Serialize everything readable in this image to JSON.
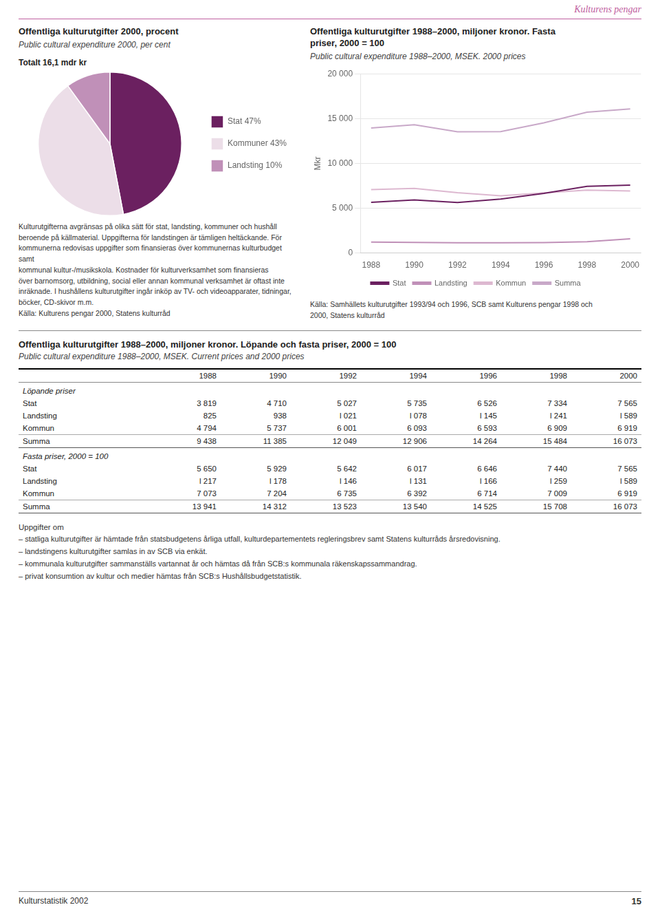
{
  "header": "Kulturens pengar",
  "chart_data": [
    {
      "type": "pie",
      "title": "Offentliga kulturutgifter 2000, procent",
      "subtitle": "Public cultural expenditure 2000, per cent",
      "annotations": [
        "Totalt 16,1 mdr kr",
        "Kulturutgifterna avgränsas på olika sätt för stat, landsting, kommuner och hushåll\nberoende på källmaterial. Uppgifterna för landstingen är tämligen heltäckande. För\nkommunerna redovisas uppgifter som finansieras över kommunernas kulturbudget samt\nkommunal kultur-/musikskola. Kostnader för kulturverksamhet som finansieras\növer barnomsorg, utbildning, social eller annan kommunal verksamhet är oftast inte\ninräknade. I hushållens kulturutgifter ingår inköp av TV- och videoapparater, tidningar,\nböcker, CD-skivor m.m.\nKälla: Kulturens pengar 2000, Statens kulturråd"
      ],
      "categories": [
        "Stat 47%",
        "Kommuner 43%",
        "Landsting 10%"
      ],
      "values": [
        47,
        43,
        10
      ],
      "colors": [
        "#6b2060",
        "#ecdee8",
        "#c090b8"
      ],
      "legend": "right"
    },
    {
      "type": "line",
      "title": "Offentliga kulturutgifter 1988–2000, miljoner kronor. Fasta\npriser, 2000 = 100",
      "subtitle": "Public cultural expenditure 1988–2000, MSEK. 2000 prices",
      "ylabel": "Mkr",
      "annotations": [
        "Källa: Samhällets kulturutgifter 1993/94 och 1996, SCB samt Kulturens pengar 1998 och\n2000, Statens kulturråd"
      ],
      "x": [
        1988,
        1990,
        1992,
        1994,
        1996,
        1998,
        2000
      ],
      "xlim": [
        1987.5,
        2000.5
      ],
      "xticks": [
        1988,
        1990,
        1992,
        1994,
        1996,
        1998,
        2000
      ],
      "ylim": [
        0,
        20000
      ],
      "yticks": [
        0,
        {
          "value": 5000,
          "label": "5 000"
        },
        {
          "value": 10000,
          "label": "10 000"
        },
        {
          "value": 15000,
          "label": "15 000"
        },
        {
          "value": 20000,
          "label": "20 000"
        }
      ],
      "grid": "y",
      "legend": "bottom",
      "series": [
        {
          "name": "Stat",
          "color": "#6b2060",
          "values": [
            5650,
            5929,
            5642,
            6017,
            6646,
            7440,
            7565
          ]
        },
        {
          "name": "Landsting",
          "color": "#c090b8",
          "values": [
            1217,
            1178,
            1146,
            1131,
            1166,
            1259,
            1589
          ]
        },
        {
          "name": "Kommun",
          "color": "#ddb8d0",
          "values": [
            7073,
            7204,
            6735,
            6392,
            6714,
            7009,
            6919
          ]
        },
        {
          "name": "Summa",
          "color": "#c8a8c8",
          "values": [
            13941,
            14312,
            13523,
            13540,
            14525,
            15708,
            16073
          ]
        }
      ]
    }
  ],
  "table": {
    "title": "Offentliga kulturutgifter 1988–2000, miljoner kronor. Löpande och fasta priser, 2000 = 100",
    "subtitle": "Public cultural expenditure 1988–2000, MSEK. Current prices and 2000 prices",
    "columns": [
      "1988",
      "1990",
      "1992",
      "1994",
      "1996",
      "1998",
      "2000"
    ],
    "sections": [
      {
        "name": "Löpande priser",
        "rows": [
          {
            "name": "Stat",
            "values": [
              "3 819",
              "4 710",
              "5 027",
              "5 735",
              "6 526",
              "7 334",
              "7 565"
            ]
          },
          {
            "name": "Landsting",
            "values": [
              "825",
              "938",
              "l 021",
              "l 078",
              "l 145",
              "l 241",
              "l 589"
            ]
          },
          {
            "name": "Kommun",
            "values": [
              "4 794",
              "5 737",
              "6 001",
              "6 093",
              "6 593",
              "6 909",
              "6 919"
            ]
          },
          {
            "name": "Summa",
            "values": [
              "9 438",
              "11 385",
              "12 049",
              "12 906",
              "14 264",
              "15 484",
              "16 073"
            ]
          }
        ]
      },
      {
        "name": "Fasta priser, 2000 = 100",
        "rows": [
          {
            "name": "Stat",
            "values": [
              "5 650",
              "5 929",
              "5 642",
              "6 017",
              "6 646",
              "7 440",
              "7 565"
            ]
          },
          {
            "name": "Landsting",
            "values": [
              "l 217",
              "l 178",
              "l 146",
              "l 131",
              "l 166",
              "l 259",
              "l 589"
            ]
          },
          {
            "name": "Kommun",
            "values": [
              "7 073",
              "7 204",
              "6 735",
              "6 392",
              "6 714",
              "7 009",
              "6 919"
            ]
          },
          {
            "name": "Summa",
            "values": [
              "13 941",
              "14 312",
              "13 523",
              "13 540",
              "14 525",
              "15 708",
              "16 073"
            ]
          }
        ]
      }
    ]
  },
  "notes": {
    "header": "Uppgifter om",
    "items": [
      "–  statliga kulturutgifter är hämtade från statsbudgetens årliga utfall, kulturdepartementets regleringsbrev samt Statens kulturråds årsredovisning.",
      "–  landstingens kulturutgifter samlas in av SCB via enkät.",
      "–  kommunala kulturutgifter sammanställs vartannat år och hämtas då från SCB:s kommunala räkenskapssammandrag.",
      "–  privat konsumtion av kultur och medier hämtas från SCB:s Hushållsbudgetstatistik."
    ]
  },
  "footer": {
    "left": "Kulturstatistik 2002",
    "page": "15"
  }
}
